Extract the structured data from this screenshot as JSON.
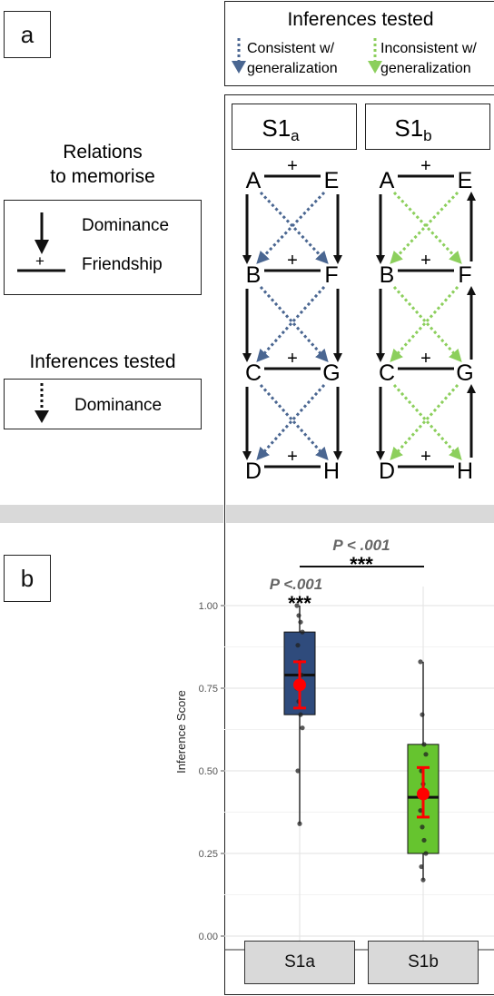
{
  "panel_a": {
    "label": "a",
    "legend_top": {
      "title": "Inferences tested",
      "consistent": [
        "Consistent w/",
        "generalization"
      ],
      "inconsistent": [
        "Inconsistent w/",
        "generalization"
      ]
    },
    "relations": {
      "title": [
        "Relations",
        "to memorise"
      ],
      "dominance": "Dominance",
      "friendship": "Friendship",
      "plus": "+"
    },
    "inferences_tested": {
      "title": "Inferences tested",
      "dominance": "Dominance"
    },
    "schemes": [
      {
        "title": "S1",
        "sub": "a",
        "nodes_left": [
          "A",
          "B",
          "C",
          "D"
        ],
        "nodes_right": [
          "E",
          "F",
          "G",
          "H"
        ],
        "right_arrows": "down",
        "inference_color": "#4a6691"
      },
      {
        "title": "S1",
        "sub": "b",
        "nodes_left": [
          "A",
          "B",
          "C",
          "D"
        ],
        "nodes_right": [
          "E",
          "F",
          "G",
          "H"
        ],
        "right_arrows": "up",
        "inference_color": "#8ccf5c"
      }
    ]
  },
  "panel_b": {
    "label": "b",
    "x_labels": [
      "S1a",
      "S1b"
    ],
    "sig_top_p": "P < .001",
    "sig_top_stars": "***",
    "sig_s1a_p": "P <.001",
    "sig_s1a_stars": "***"
  },
  "chart_data": {
    "type": "box",
    "ylabel": "Inference Score",
    "ylim": [
      -0.05,
      1.05
    ],
    "y_ticks": [
      0.0,
      0.25,
      0.5,
      0.75,
      1.0
    ],
    "y_tick_labels": [
      "0.00",
      "0.25",
      "0.50",
      "0.75",
      "1.00"
    ],
    "categories": [
      "S1a",
      "S1b"
    ],
    "colors": {
      "S1a": "#2f4b7c",
      "S1b": "#66c42f",
      "mean": "#ff0000"
    },
    "boxes": [
      {
        "name": "S1a",
        "min": 0.34,
        "q1": 0.67,
        "median": 0.79,
        "q3": 0.92,
        "max": 1.0,
        "mean": 0.76,
        "ci": [
          0.69,
          0.83
        ],
        "points": [
          1.0,
          0.97,
          0.95,
          0.92,
          0.88,
          0.83,
          0.79,
          0.75,
          0.71,
          0.67,
          0.63,
          0.5,
          0.34
        ]
      },
      {
        "name": "S1b",
        "min": 0.17,
        "q1": 0.25,
        "median": 0.42,
        "q3": 0.58,
        "max": 0.83,
        "mean": 0.43,
        "ci": [
          0.36,
          0.51
        ],
        "points": [
          0.83,
          0.67,
          0.58,
          0.55,
          0.5,
          0.46,
          0.42,
          0.38,
          0.33,
          0.29,
          0.25,
          0.21,
          0.17
        ]
      }
    ]
  }
}
